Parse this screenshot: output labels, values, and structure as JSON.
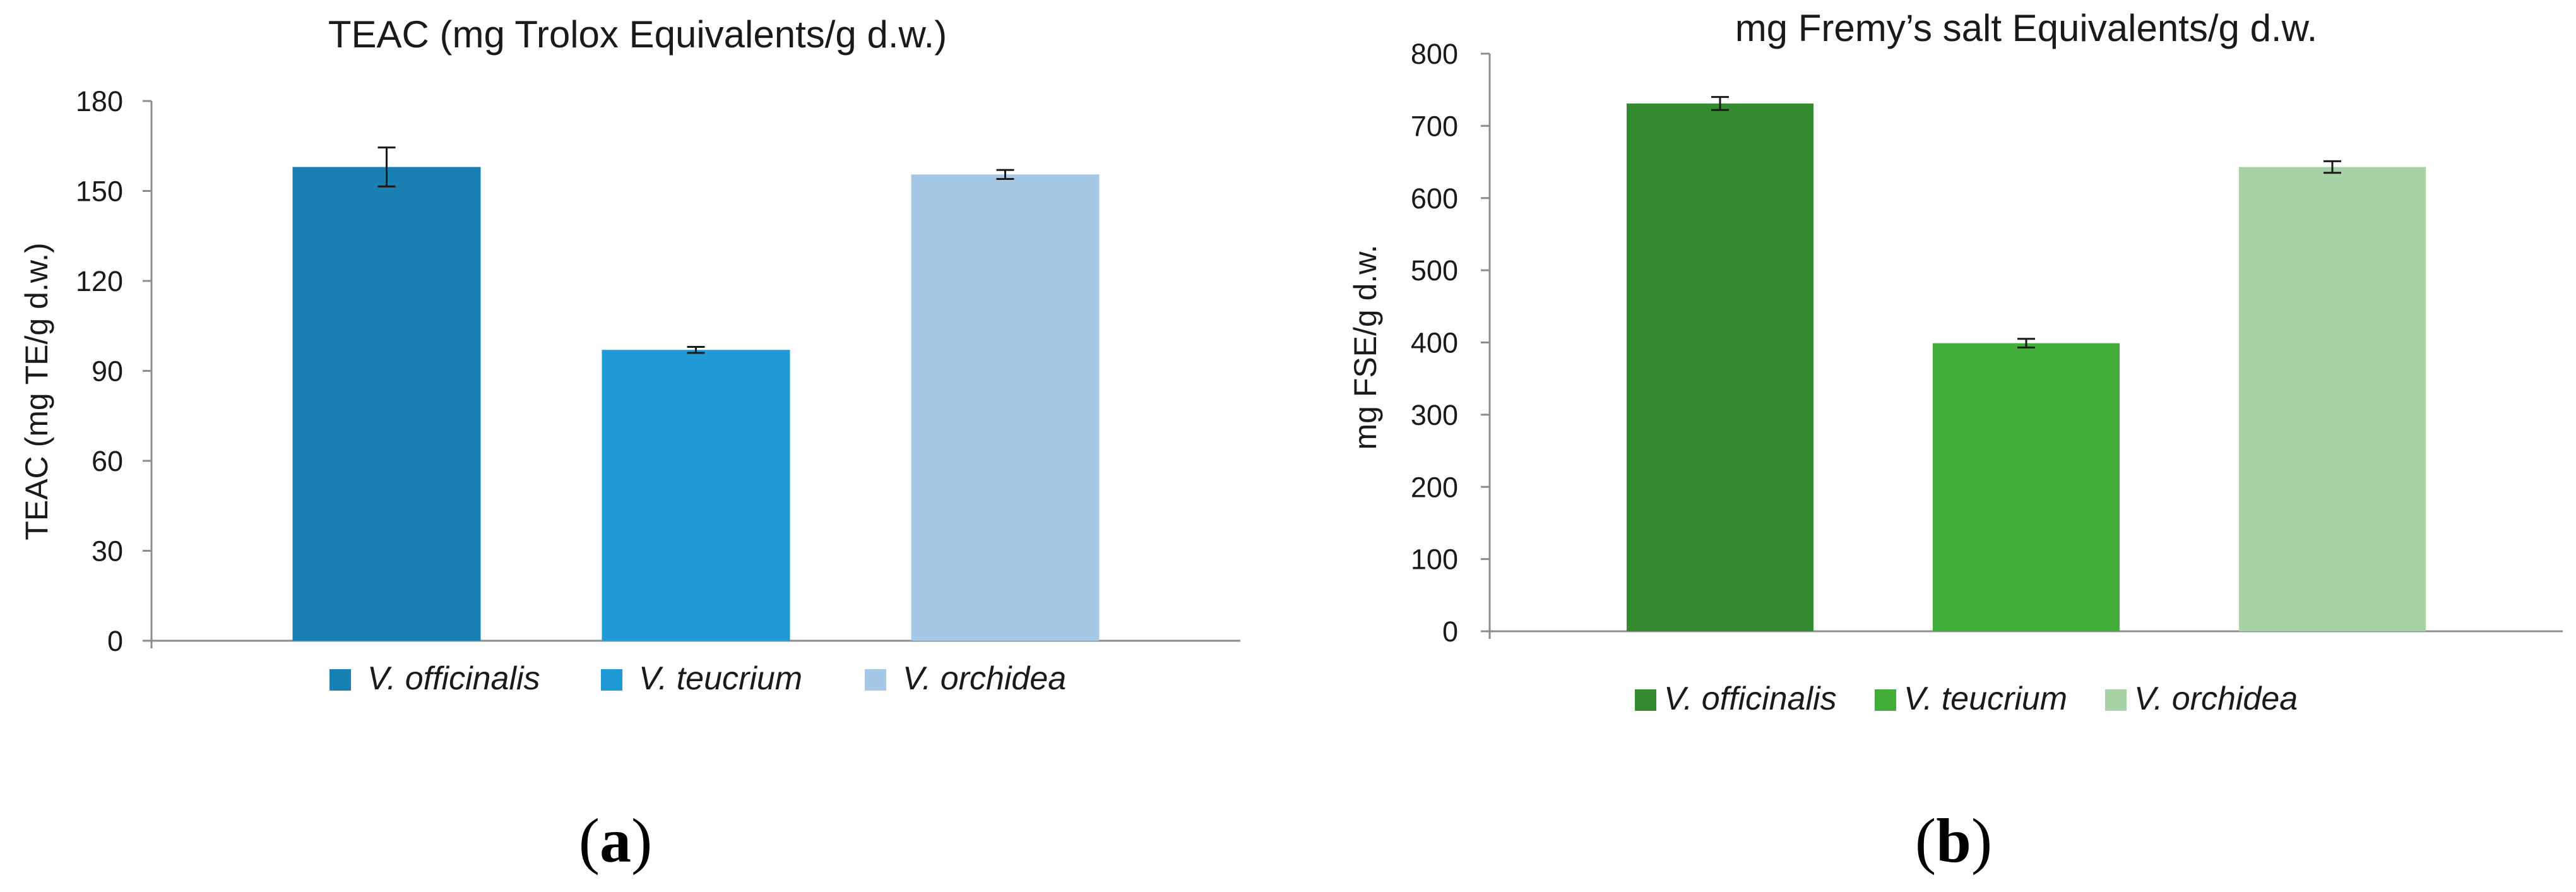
{
  "panels": [
    {
      "open": "(",
      "letter": "a",
      "close": ")"
    },
    {
      "open": "(",
      "letter": "b",
      "close": ")"
    }
  ],
  "chart_data": [
    {
      "type": "bar",
      "title": "TEAC (mg Trolox Equivalents/g d.w.)",
      "xlabel": "",
      "ylabel": "TEAC (mg TE/g d.w.)",
      "ylim": [
        0,
        180
      ],
      "yticks": [
        0,
        30,
        60,
        90,
        120,
        150,
        180
      ],
      "categories": [
        "V. officinalis",
        "V. teucrium",
        "V. orchidea"
      ],
      "values": [
        158,
        97,
        155.5
      ],
      "errors": [
        6.5,
        1,
        1.5
      ],
      "colors": [
        "#1880b3",
        "#1f9ad6",
        "#a5c8e6"
      ],
      "legend": [
        "V. officinalis",
        "V. teucrium",
        "V. orchidea"
      ],
      "legend_position": "bottom",
      "grid": false
    },
    {
      "type": "bar",
      "title": "mg Fremy’s salt Equivalents/g d.w.",
      "xlabel": "",
      "ylabel": "mg FSE/g d.w.",
      "ylim": [
        0,
        800
      ],
      "yticks": [
        0,
        100,
        200,
        300,
        400,
        500,
        600,
        700,
        800
      ],
      "categories": [
        "V. officinalis",
        "V. teucrium",
        "V. orchidea"
      ],
      "values": [
        731,
        399,
        643
      ],
      "errors": [
        9,
        6,
        8
      ],
      "colors": [
        "#358c30",
        "#43ad3c",
        "#a6d2a6"
      ],
      "legend": [
        "V. officinalis",
        "V. teucrium",
        "V. orchidea"
      ],
      "legend_position": "bottom",
      "grid": false
    }
  ]
}
